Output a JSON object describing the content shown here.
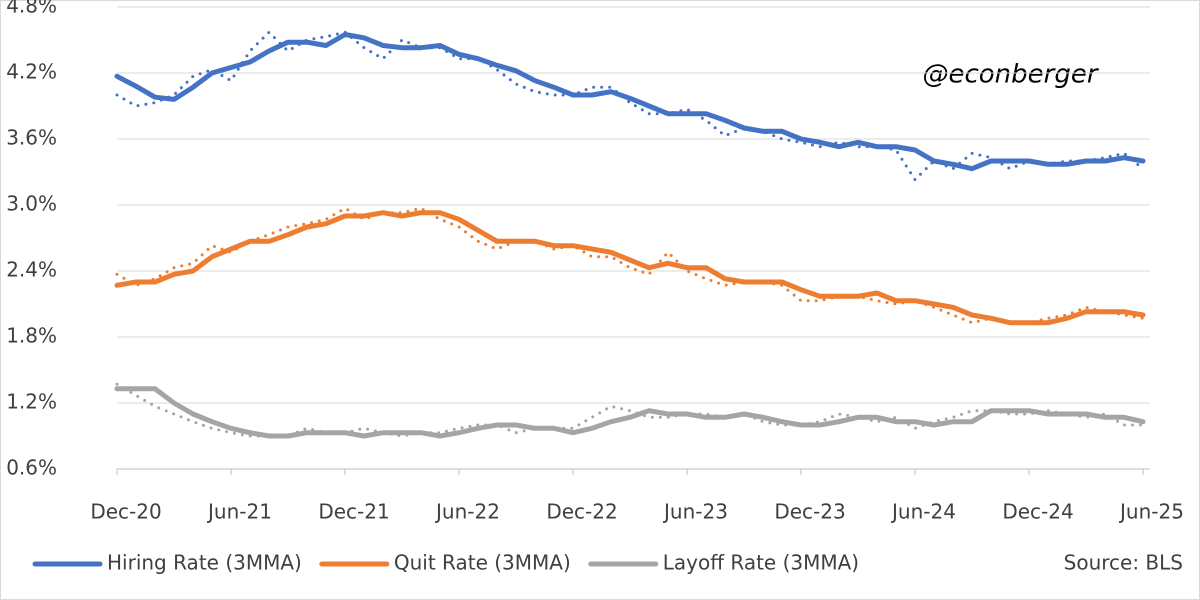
{
  "chart_data": {
    "type": "line",
    "annotation": "@econberger",
    "source": "Source: BLS",
    "categories": [
      "Dec-20",
      null,
      null,
      null,
      null,
      null,
      "Jun-21",
      null,
      null,
      null,
      null,
      null,
      "Dec-21",
      null,
      null,
      null,
      null,
      null,
      "Jun-22",
      null,
      null,
      null,
      null,
      null,
      "Dec-22",
      null,
      null,
      null,
      null,
      null,
      "Jun-23",
      null,
      null,
      null,
      null,
      null,
      "Dec-23",
      null,
      null,
      null,
      null,
      null,
      "Jun-24",
      null,
      null,
      null,
      null,
      null,
      "Dec-24",
      null,
      null,
      null,
      null,
      null,
      "Jun-25"
    ],
    "ylim": [
      0.6,
      4.8
    ],
    "yticks": [
      {
        "value": 0.6,
        "label": "0.6%"
      },
      {
        "value": 1.2,
        "label": "1.2%"
      },
      {
        "value": 1.8,
        "label": "1.8%"
      },
      {
        "value": 2.4,
        "label": "2.4%"
      },
      {
        "value": 3.0,
        "label": "3.0%"
      },
      {
        "value": 3.6,
        "label": "3.6%"
      },
      {
        "value": 4.2,
        "label": "4.2%"
      },
      {
        "value": 4.8,
        "label": "4.8%"
      }
    ],
    "grid": true,
    "legend": "bottom",
    "series": [
      {
        "name": "Hiring Rate (3MMA)",
        "color": "#4472c4",
        "style": "solid",
        "values": [
          4.17,
          4.08,
          3.98,
          3.96,
          4.07,
          4.2,
          4.25,
          4.3,
          4.4,
          4.48,
          4.48,
          4.45,
          4.55,
          4.52,
          4.45,
          4.43,
          4.43,
          4.45,
          4.37,
          4.33,
          4.27,
          4.22,
          4.13,
          4.07,
          4.0,
          4.0,
          4.03,
          3.97,
          3.9,
          3.83,
          3.83,
          3.83,
          3.77,
          3.7,
          3.67,
          3.67,
          3.6,
          3.57,
          3.53,
          3.57,
          3.53,
          3.53,
          3.5,
          3.4,
          3.37,
          3.33,
          3.4,
          3.4,
          3.4,
          3.37,
          3.37,
          3.4,
          3.4,
          3.43,
          3.4
        ]
      },
      {
        "name": "Quit Rate (3MMA)",
        "color": "#ed7d31",
        "style": "solid",
        "values": [
          2.27,
          2.3,
          2.3,
          2.37,
          2.4,
          2.53,
          2.6,
          2.67,
          2.67,
          2.73,
          2.8,
          2.83,
          2.9,
          2.9,
          2.93,
          2.9,
          2.93,
          2.93,
          2.87,
          2.77,
          2.67,
          2.67,
          2.67,
          2.63,
          2.63,
          2.6,
          2.57,
          2.5,
          2.43,
          2.47,
          2.43,
          2.43,
          2.33,
          2.3,
          2.3,
          2.3,
          2.23,
          2.17,
          2.17,
          2.17,
          2.2,
          2.13,
          2.13,
          2.1,
          2.07,
          2.0,
          1.97,
          1.93,
          1.93,
          1.93,
          1.97,
          2.03,
          2.03,
          2.03,
          2.0
        ]
      },
      {
        "name": "Layoff Rate (3MMA)",
        "color": "#a5a5a5",
        "style": "solid",
        "values": [
          1.33,
          1.33,
          1.33,
          1.2,
          1.1,
          1.03,
          0.97,
          0.93,
          0.9,
          0.9,
          0.93,
          0.93,
          0.93,
          0.9,
          0.93,
          0.93,
          0.93,
          0.9,
          0.93,
          0.97,
          1.0,
          1.0,
          0.97,
          0.97,
          0.93,
          0.97,
          1.03,
          1.07,
          1.13,
          1.1,
          1.1,
          1.07,
          1.07,
          1.1,
          1.07,
          1.03,
          1.0,
          1.0,
          1.03,
          1.07,
          1.07,
          1.03,
          1.03,
          1.0,
          1.03,
          1.03,
          1.13,
          1.13,
          1.13,
          1.1,
          1.1,
          1.1,
          1.07,
          1.07,
          1.03
        ]
      },
      {
        "color": "#4472c4",
        "style": "dotted",
        "values": [
          4.0,
          3.9,
          3.93,
          4.0,
          4.17,
          4.23,
          4.13,
          4.4,
          4.57,
          4.4,
          4.5,
          4.53,
          4.57,
          4.43,
          4.33,
          4.5,
          4.43,
          4.43,
          4.33,
          4.33,
          4.23,
          4.1,
          4.03,
          4.0,
          4.0,
          4.07,
          4.07,
          3.93,
          3.83,
          3.83,
          3.87,
          3.77,
          3.63,
          3.7,
          3.67,
          3.6,
          3.57,
          3.53,
          3.57,
          3.53,
          3.53,
          3.5,
          3.23,
          3.4,
          3.33,
          3.47,
          3.43,
          3.33,
          3.4,
          3.37,
          3.4,
          3.4,
          3.43,
          3.47,
          3.33
        ]
      },
      {
        "color": "#ed7d31",
        "style": "dotted",
        "values": [
          2.37,
          2.27,
          2.33,
          2.43,
          2.47,
          2.63,
          2.57,
          2.67,
          2.73,
          2.8,
          2.83,
          2.87,
          2.97,
          2.87,
          2.93,
          2.93,
          2.97,
          2.87,
          2.8,
          2.67,
          2.6,
          2.67,
          2.67,
          2.6,
          2.63,
          2.53,
          2.53,
          2.43,
          2.37,
          2.57,
          2.4,
          2.33,
          2.27,
          2.3,
          2.3,
          2.27,
          2.13,
          2.13,
          2.17,
          2.17,
          2.13,
          2.1,
          2.13,
          2.07,
          2.0,
          1.93,
          1.97,
          1.93,
          1.93,
          1.97,
          2.0,
          2.07,
          2.03,
          2.0,
          1.97
        ]
      },
      {
        "color": "#a5a5a5",
        "style": "dotted",
        "values": [
          1.37,
          1.27,
          1.17,
          1.1,
          1.03,
          0.97,
          0.93,
          0.9,
          0.9,
          0.9,
          0.97,
          0.93,
          0.93,
          0.97,
          0.93,
          0.9,
          0.93,
          0.93,
          0.97,
          1.0,
          1.0,
          0.93,
          0.97,
          0.97,
          0.97,
          1.07,
          1.17,
          1.13,
          1.07,
          1.07,
          1.1,
          1.1,
          1.07,
          1.1,
          1.03,
          1.0,
          1.0,
          1.03,
          1.1,
          1.07,
          1.03,
          1.07,
          0.97,
          1.03,
          1.07,
          1.13,
          1.13,
          1.1,
          1.1,
          1.13,
          1.1,
          1.07,
          1.1,
          1.0,
          1.0
        ]
      }
    ]
  }
}
